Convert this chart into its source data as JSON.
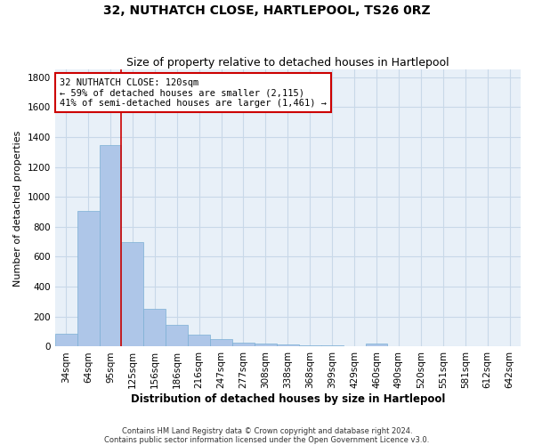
{
  "title": "32, NUTHATCH CLOSE, HARTLEPOOL, TS26 0RZ",
  "subtitle": "Size of property relative to detached houses in Hartlepool",
  "xlabel": "Distribution of detached houses by size in Hartlepool",
  "ylabel": "Number of detached properties",
  "categories": [
    "34sqm",
    "64sqm",
    "95sqm",
    "125sqm",
    "156sqm",
    "186sqm",
    "216sqm",
    "247sqm",
    "277sqm",
    "308sqm",
    "338sqm",
    "368sqm",
    "399sqm",
    "429sqm",
    "460sqm",
    "490sqm",
    "520sqm",
    "551sqm",
    "581sqm",
    "612sqm",
    "642sqm"
  ],
  "values": [
    85,
    905,
    1345,
    700,
    250,
    145,
    80,
    50,
    25,
    20,
    15,
    10,
    8,
    5,
    20,
    0,
    0,
    0,
    0,
    0,
    0
  ],
  "bar_color": "#aec6e8",
  "bar_edge_color": "#7bafd4",
  "vline_color": "#cc0000",
  "vline_x_index": 2.5,
  "annotation_text": "32 NUTHATCH CLOSE: 120sqm\n← 59% of detached houses are smaller (2,115)\n41% of semi-detached houses are larger (1,461) →",
  "annotation_box_edgecolor": "#cc0000",
  "ylim": [
    0,
    1850
  ],
  "yticks": [
    0,
    200,
    400,
    600,
    800,
    1000,
    1200,
    1400,
    1600,
    1800
  ],
  "grid_color": "#c8d8e8",
  "background_color": "#e8f0f8",
  "footer_text": "Contains HM Land Registry data © Crown copyright and database right 2024.\nContains public sector information licensed under the Open Government Licence v3.0.",
  "title_fontsize": 10,
  "subtitle_fontsize": 9,
  "xlabel_fontsize": 8.5,
  "ylabel_fontsize": 8,
  "tick_fontsize": 7.5,
  "annotation_fontsize": 7.5,
  "footer_fontsize": 6
}
